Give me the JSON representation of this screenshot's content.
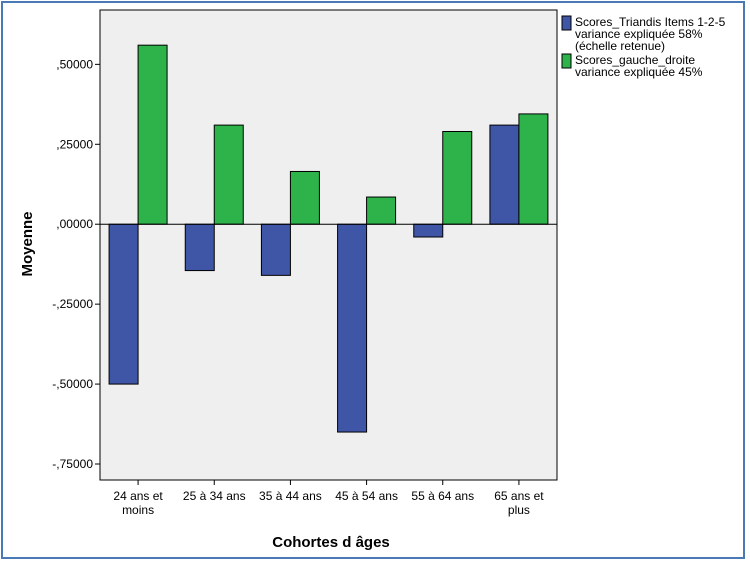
{
  "chart_data": {
    "type": "bar",
    "xlabel": "Cohortes d âges",
    "ylabel": "Moyenne",
    "categories": [
      [
        "24 ans et",
        "moins"
      ],
      [
        "25 à 34 ans"
      ],
      [
        "35 à 44 ans"
      ],
      [
        "45 à 54 ans"
      ],
      [
        "55 à 64 ans"
      ],
      [
        "65 ans et",
        "plus"
      ]
    ],
    "series": [
      {
        "name": [
          "Scores_Triandis Items 1-2-5",
          "variance expliquée 58%",
          "(échelle retenue)"
        ],
        "color": "#3f55a5",
        "values": [
          -0.5,
          -0.145,
          -0.16,
          -0.65,
          -0.04,
          0.31
        ]
      },
      {
        "name": [
          "Scores_gauche_droite",
          "variance expliquée 45%"
        ],
        "color": "#2db34a",
        "values": [
          0.56,
          0.31,
          0.165,
          0.085,
          0.29,
          0.345
        ]
      }
    ],
    "ylim": [
      -0.8,
      0.67
    ],
    "yticks": [
      0.5,
      0.25,
      0.0,
      -0.25,
      -0.5,
      -0.75
    ],
    "ytick_labels": [
      ",50000",
      ",25000",
      ",00000",
      "-,25000",
      "-,50000",
      "-,75000"
    ],
    "grid": false,
    "legend": "top-right",
    "plot_background": "#efefef"
  }
}
